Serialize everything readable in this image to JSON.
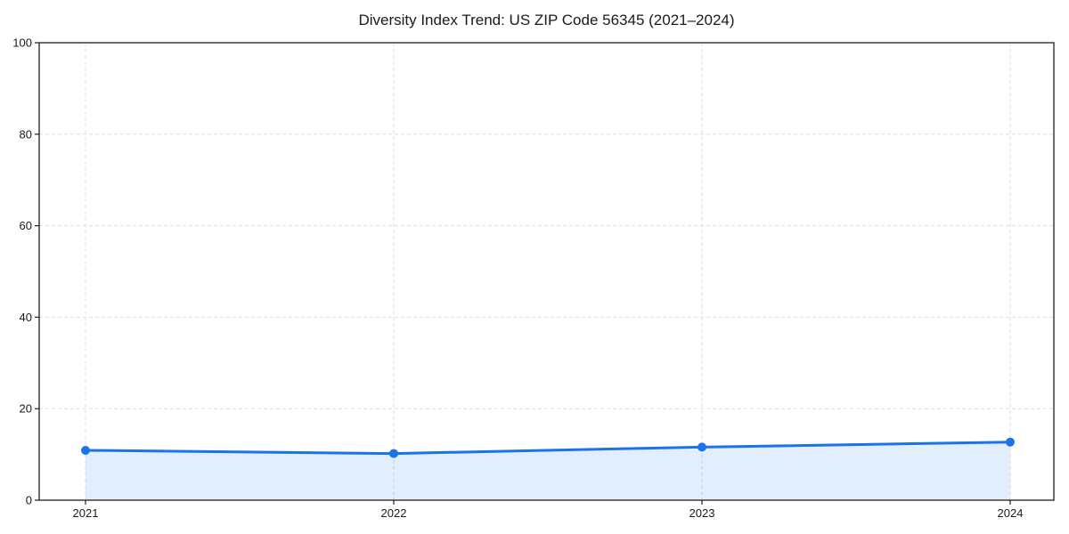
{
  "chart_data": {
    "type": "area",
    "title": "Diversity Index Trend: US ZIP Code 56345 (2021–2024)",
    "categories": [
      "2021",
      "2022",
      "2023",
      "2024"
    ],
    "x": [
      2021,
      2022,
      2023,
      2024
    ],
    "series": [
      {
        "name": "Diversity Index",
        "values": [
          10.9,
          10.2,
          11.6,
          12.7
        ]
      }
    ],
    "xlabel": "",
    "ylabel": "",
    "ylim": [
      0,
      100
    ],
    "yticks": [
      0,
      20,
      40,
      60,
      80,
      100
    ],
    "grid": true,
    "grid_style": "dashed",
    "legend_position": "none",
    "marker": "circle",
    "colors": {
      "line": "#1a73e8",
      "marker": "#1a73e8",
      "fill": "#1a73e8",
      "fill_opacity": "0.12",
      "grid": "#dedede",
      "spine": "#1f1f1f",
      "text": "#1a1a1a",
      "background": "#ffffff"
    }
  }
}
